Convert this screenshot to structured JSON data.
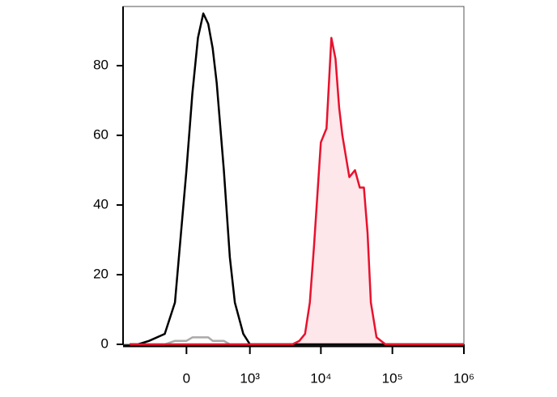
{
  "chart_data": {
    "type": "line",
    "x": [
      -800,
      -600,
      -400,
      -200,
      -100,
      0,
      50,
      100,
      150,
      200,
      250,
      300,
      400,
      500,
      600,
      800,
      1000,
      1500,
      2000,
      3000,
      4000,
      5000,
      6000,
      7000,
      8000,
      10000,
      12000,
      14000,
      16000,
      18000,
      20000,
      25000,
      30000,
      35000,
      40000,
      45000,
      50000,
      60000,
      80000,
      100000,
      200000,
      500000,
      1000000
    ],
    "series": [
      {
        "color": "#aaaaaa",
        "fill": false,
        "values": [
          0,
          0,
          0,
          0,
          1,
          1,
          2,
          2,
          2,
          2,
          1,
          1,
          1,
          0,
          0,
          0,
          0,
          0,
          0,
          0,
          0,
          0,
          0,
          0,
          0,
          0,
          0,
          0,
          0,
          0,
          0,
          0,
          0,
          0,
          0,
          0,
          0,
          0,
          0,
          0,
          0,
          0,
          0
        ]
      },
      {
        "color": "#000000",
        "fill": false,
        "values": [
          0,
          0,
          1,
          3,
          12,
          50,
          72,
          88,
          95,
          92,
          85,
          75,
          50,
          25,
          12,
          3,
          0,
          0,
          0,
          0,
          0,
          0,
          0,
          0,
          0,
          0,
          0,
          0,
          0,
          0,
          0,
          0,
          0,
          0,
          0,
          0,
          0,
          0,
          0,
          0,
          0,
          0,
          0
        ]
      },
      {
        "color": "#e8112d",
        "fill": true,
        "values": [
          0,
          0,
          0,
          0,
          0,
          0,
          0,
          0,
          0,
          0,
          0,
          0,
          0,
          0,
          0,
          0,
          0,
          0,
          0,
          0,
          0,
          1,
          3,
          12,
          28,
          58,
          62,
          88,
          82,
          68,
          60,
          48,
          50,
          45,
          45,
          32,
          12,
          2,
          0,
          0,
          0,
          0,
          0
        ]
      }
    ],
    "xscale": "biexponential",
    "xlim": [
      -1000,
      1000000
    ],
    "xticks": [
      0,
      {
        "value": 1000,
        "label": "10³"
      },
      {
        "value": 10000,
        "label": "10⁴"
      },
      {
        "value": 100000,
        "label": "10⁵"
      },
      {
        "value": 1000000,
        "label": "10⁶"
      }
    ],
    "ylim": [
      0,
      97
    ],
    "yticks": [
      0,
      20,
      40,
      60,
      80
    ]
  }
}
